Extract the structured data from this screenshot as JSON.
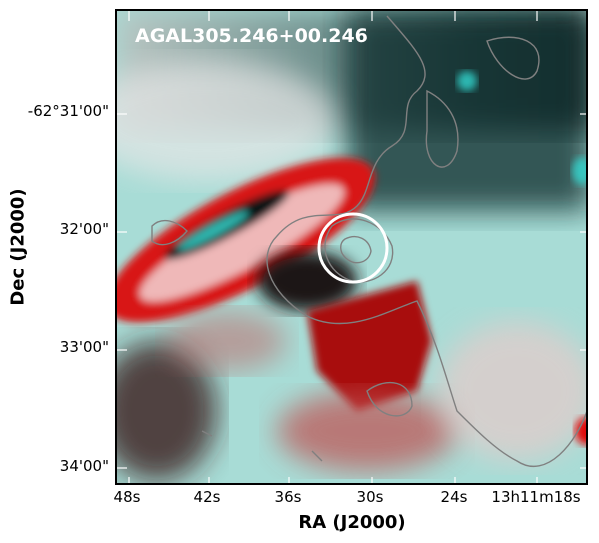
{
  "figure": {
    "title": "AGAL305.246+00.246",
    "xlabel": "RA (J2000)",
    "ylabel": "Dec (J2000)",
    "yticks": [
      "-62°31'00\"",
      "32'00\"",
      "33'00\"",
      "34'00\""
    ],
    "xticks": [
      "48s",
      "42s",
      "36s",
      "30s",
      "24s",
      "13h11m18s"
    ],
    "colors": {
      "red_channel": "#e01010",
      "cyan_channel": "#40d0c8",
      "contours": "#808080",
      "marker_circle": "#ffffff"
    }
  }
}
